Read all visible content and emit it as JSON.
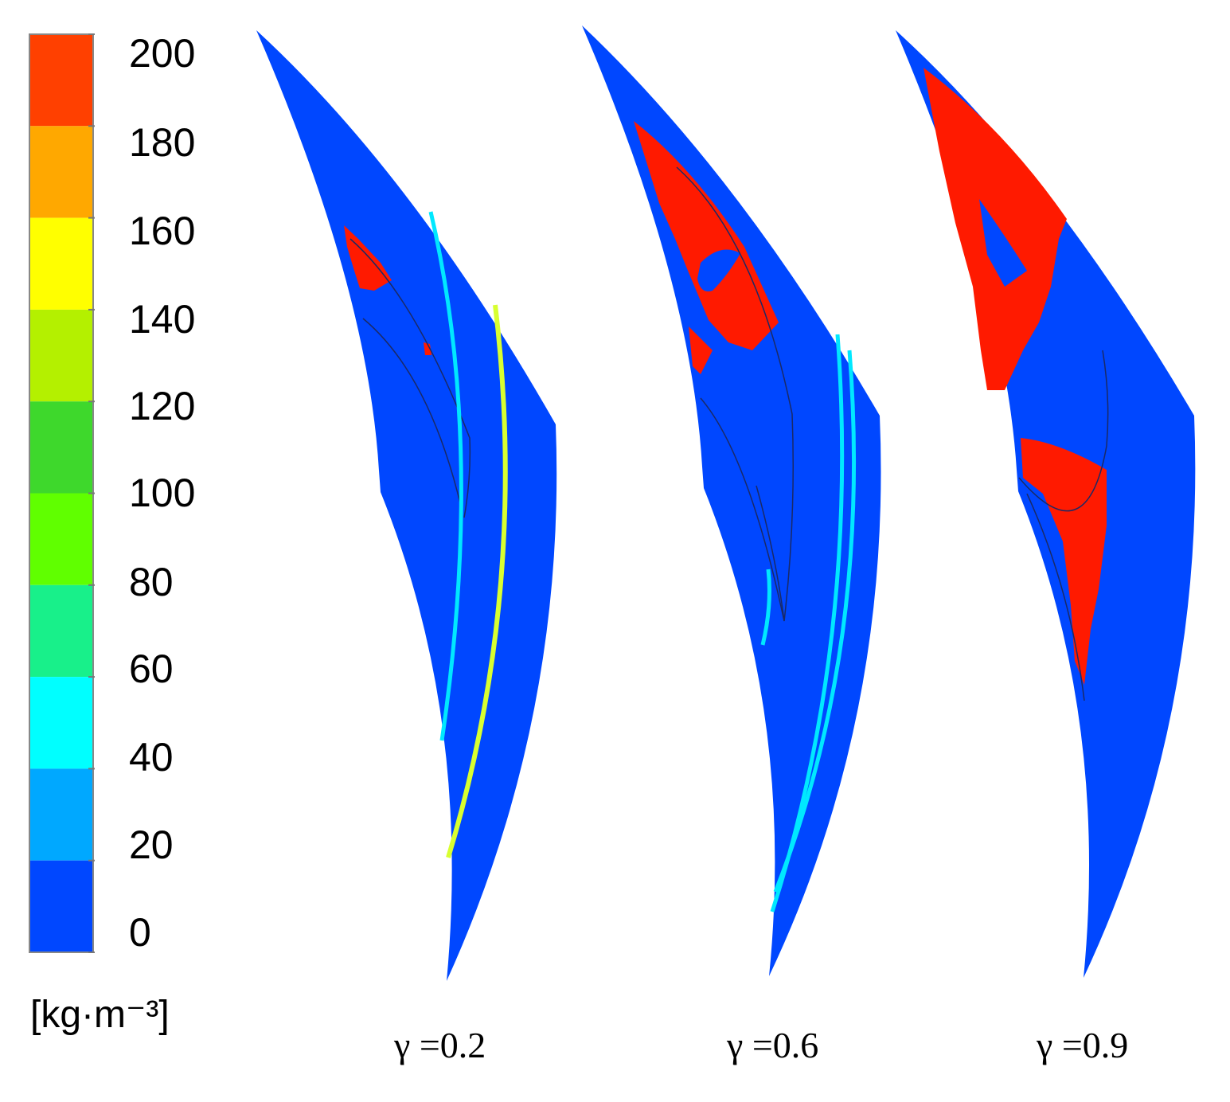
{
  "colorbar": {
    "ticks": [
      "200",
      "180",
      "160",
      "140",
      "120",
      "100",
      "80",
      "60",
      "40",
      "20",
      "0"
    ],
    "bands": [
      {
        "from": 180,
        "to": 200,
        "color": "#ff4000"
      },
      {
        "from": 160,
        "to": 180,
        "color": "#ffa800"
      },
      {
        "from": 140,
        "to": 160,
        "color": "#ffff00"
      },
      {
        "from": 120,
        "to": 140,
        "color": "#b4f000"
      },
      {
        "from": 100,
        "to": 120,
        "color": "#3ed82c"
      },
      {
        "from": 80,
        "to": 100,
        "color": "#60ff00"
      },
      {
        "from": 60,
        "to": 80,
        "color": "#18f08a"
      },
      {
        "from": 40,
        "to": 60,
        "color": "#00ffff"
      },
      {
        "from": 20,
        "to": 40,
        "color": "#00a8ff"
      },
      {
        "from": 0,
        "to": 20,
        "color": "#0047ff"
      }
    ],
    "unit": "[kg·m⁻³]"
  },
  "colors": {
    "background_field": "#0047ff",
    "high_density": "#ff1a00",
    "band_cyan": "#00e8ff",
    "band_yellow": "#d8ff30"
  },
  "panels": [
    {
      "label": "γ =0.2"
    },
    {
      "label": "γ =0.6"
    },
    {
      "label": "γ =0.9"
    }
  ]
}
